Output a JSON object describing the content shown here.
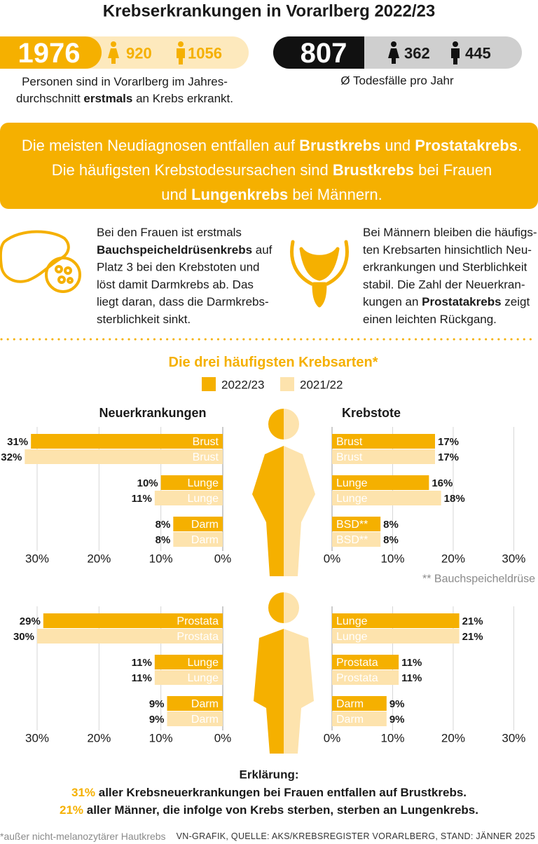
{
  "title": "Krebserkrankungen in Vorarlberg 2022/23",
  "new_cases": {
    "total": 1976,
    "women": 920,
    "men": 1056,
    "caption": [
      [
        "Personen sind in Vorarlberg im Jahres-"
      ],
      [
        "durchschnitt ",
        {
          "text": "erstmals",
          "bold": true
        },
        " an Krebs erkrankt."
      ]
    ]
  },
  "deaths": {
    "total": 807,
    "women": 362,
    "men": 445,
    "caption": "Ø Todesfälle pro Jahr"
  },
  "highlight": [
    [
      "Die meisten Neudiagnosen entfallen auf ",
      {
        "text": "Brustkrebs",
        "bold": true
      },
      " und ",
      {
        "text": "Prostatakrebs",
        "bold": true
      },
      "."
    ],
    [
      "Die häufigsten Krebstodesursachen sind ",
      {
        "text": "Brustkrebs",
        "bold": true
      },
      " bei Frauen"
    ],
    [
      "und ",
      {
        "text": "Lungenkrebs",
        "bold": true
      },
      " bei Männern."
    ]
  ],
  "women_note": [
    [
      "Bei den Frauen ist erstmals"
    ],
    [
      {
        "text": "Bauchspeicheldrüsenkrebs",
        "bold": true
      },
      " auf"
    ],
    [
      "Platz 3 bei den Krebstoten und"
    ],
    [
      "löst damit Darmkrebs ab. Das"
    ],
    [
      "liegt daran, dass die Darmkrebs-"
    ],
    [
      "sterblichkeit sinkt."
    ]
  ],
  "men_note": [
    [
      "Bei Männern bleiben die häufigs-"
    ],
    [
      "ten Krebsarten hinsichtlich Neu-"
    ],
    [
      "erkrankungen und Sterblichkeit"
    ],
    [
      "stabil. Die Zahl der Neuerkran-"
    ],
    [
      "kungen an ",
      {
        "text": "Prostatakrebs",
        "bold": true
      },
      " zeigt"
    ],
    [
      "einen leichten Rückgang."
    ]
  ],
  "subtitle": "Die drei häufigsten Krebsarten*",
  "chart_data": [
    {
      "type": "bar",
      "orientation": "horizontal",
      "title": "Neuerkrankungen",
      "categories": [
        "Brust",
        "Lunge",
        "Darm"
      ],
      "series": [
        {
          "name": "2022/23",
          "color": "#f5b000",
          "values": [
            31,
            10,
            8
          ],
          "value_labels": [
            "31%",
            "10%",
            "8%"
          ]
        },
        {
          "name": "2021/22",
          "color": "#fde3ad",
          "values": [
            32,
            11,
            8
          ],
          "value_labels": [
            "32%",
            "11%",
            "8%"
          ]
        }
      ],
      "xlim": [
        36,
        0
      ],
      "xticks": [
        {
          "value": 30,
          "label": "30%"
        },
        {
          "value": 20,
          "label": "20%"
        },
        {
          "value": 10,
          "label": "10%"
        },
        {
          "value": 0,
          "label": "0%"
        }
      ]
    },
    {
      "type": "bar",
      "orientation": "horizontal",
      "title": "Krebstote",
      "categories": [
        "Brust",
        "Lunge",
        "BSD**"
      ],
      "series": [
        {
          "color": "#f5b000",
          "values": [
            17,
            16,
            8
          ],
          "value_labels": [
            "17%",
            "16%",
            "8%"
          ]
        },
        {
          "color": "#fde3ad",
          "values": [
            17,
            18,
            8
          ],
          "value_labels": [
            "17%",
            "18%",
            "8%"
          ]
        }
      ],
      "xlim": [
        0,
        34
      ],
      "xticks": [
        {
          "value": 0,
          "label": "0%"
        },
        {
          "value": 10,
          "label": "10%"
        },
        {
          "value": 20,
          "label": "20%"
        },
        {
          "value": 30,
          "label": "30%"
        }
      ]
    },
    {
      "type": "bar",
      "orientation": "horizontal",
      "categories": [
        "Prostata",
        "Lunge",
        "Darm"
      ],
      "series": [
        {
          "color": "#f5b000",
          "values": [
            29,
            11,
            9
          ],
          "value_labels": [
            "29%",
            "11%",
            "9%"
          ]
        },
        {
          "color": "#fde3ad",
          "values": [
            30,
            11,
            9
          ],
          "value_labels": [
            "30%",
            "11%",
            "9%"
          ]
        }
      ],
      "xlim": [
        36,
        0
      ],
      "xticks": [
        {
          "value": 30,
          "label": "30%"
        },
        {
          "value": 20,
          "label": "20%"
        },
        {
          "value": 10,
          "label": "10%"
        },
        {
          "value": 0,
          "label": "0%"
        }
      ]
    },
    {
      "type": "bar",
      "orientation": "horizontal",
      "categories": [
        "Lunge",
        "Prostata",
        "Darm"
      ],
      "series": [
        {
          "color": "#f5b000",
          "values": [
            21,
            11,
            9
          ],
          "value_labels": [
            "21%",
            "11%",
            "9%"
          ]
        },
        {
          "color": "#fde3ad",
          "values": [
            21,
            11,
            9
          ],
          "value_labels": [
            "21%",
            "11%",
            "9%"
          ]
        }
      ],
      "xlim": [
        0,
        34
      ],
      "xticks": [
        {
          "value": 0,
          "label": "0%"
        },
        {
          "value": 10,
          "label": "10%"
        },
        {
          "value": 20,
          "label": "20%"
        },
        {
          "value": 30,
          "label": "30%"
        }
      ]
    }
  ],
  "bsd_note": "** Bauchspeicheldrüse",
  "explanation": {
    "title": "Erklärung:",
    "lines": [
      [
        {
          "text": "31%",
          "color": "#f5b000"
        },
        " aller Krebsneuerkrankungen bei Frauen entfallen auf Brustkrebs."
      ],
      [
        {
          "text": "21%",
          "color": "#f5b000"
        },
        " aller Männer, die infolge von Krebs sterben, sterben an Lungenkrebs."
      ]
    ]
  },
  "footnote": "*außer nicht-melanozytärer Hautkrebs",
  "source": "VN-GRAFIK, QUELLE: AKS/KREBSREGISTER VORARLBERG, STAND: JÄNNER 2025"
}
